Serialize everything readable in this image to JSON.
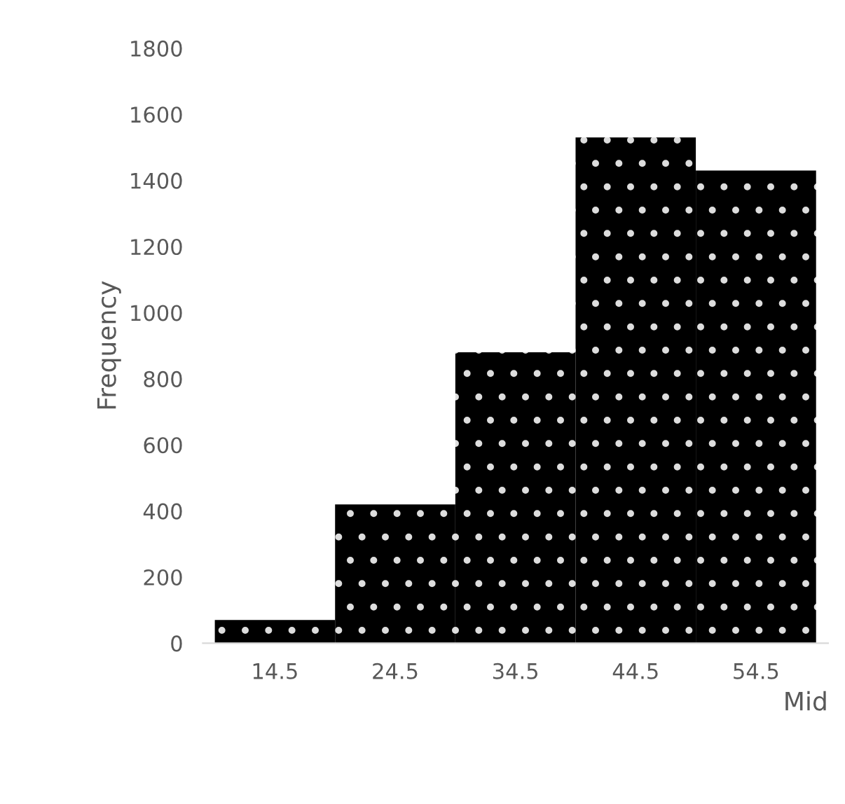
{
  "chart_data": {
    "type": "bar",
    "xlabel": "Mid",
    "ylabel": "Frequency",
    "categories": [
      "14.5",
      "24.5",
      "34.5",
      "44.5",
      "54.5"
    ],
    "values": [
      70,
      420,
      880,
      1530,
      1430
    ],
    "color": "#000000",
    "ylim": [
      0,
      1800
    ],
    "yticks": [
      0,
      200,
      400,
      600,
      800,
      1000,
      1200,
      1400,
      1600,
      1800
    ],
    "grid": false,
    "legend": false
  }
}
